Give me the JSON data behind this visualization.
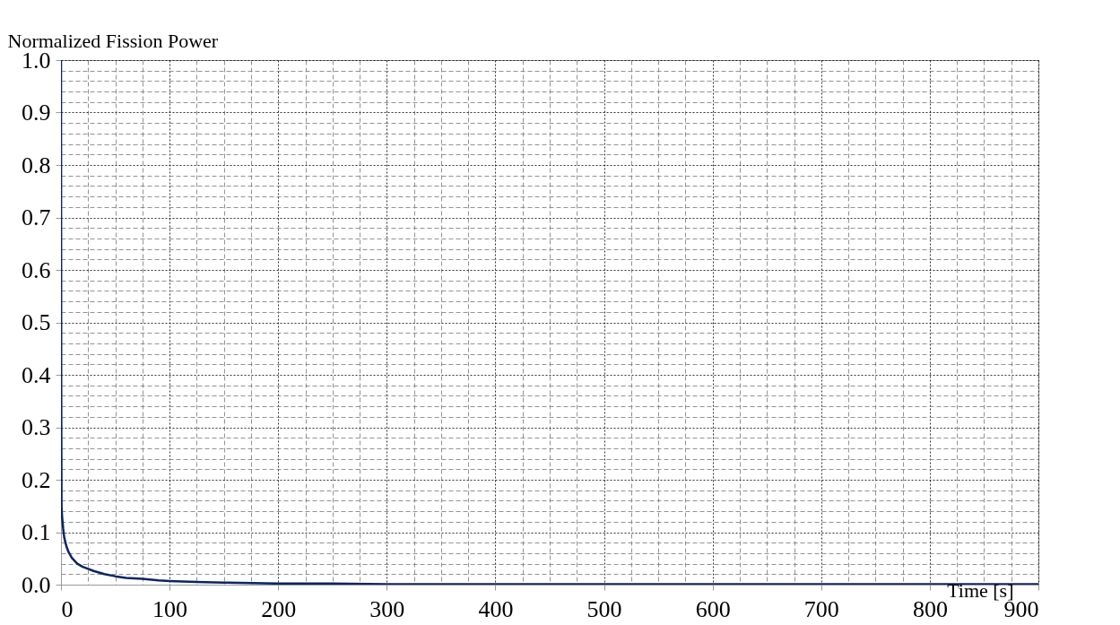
{
  "chart_data": {
    "type": "line",
    "ylabel": "Normalized Fission Power",
    "xlabel": "Time [s]",
    "x": [
      0,
      0.2,
      0.5,
      1,
      2,
      3,
      5,
      7,
      10,
      15,
      20,
      25,
      30,
      40,
      50,
      60,
      75,
      90,
      100,
      125,
      150,
      200,
      250,
      300,
      400,
      500,
      600,
      700,
      800,
      900
    ],
    "series": [
      {
        "color": "#0a2465",
        "values": [
          1.0,
          0.4,
          0.15,
          0.13,
          0.107,
          0.09,
          0.073,
          0.062,
          0.051,
          0.04,
          0.034,
          0.03,
          0.026,
          0.02,
          0.016,
          0.013,
          0.011,
          0.008,
          0.007,
          0.005,
          0.004,
          0.002,
          0.002,
          0.001,
          0.001,
          0.001,
          0.001,
          0.001,
          0.001,
          0.001
        ]
      }
    ],
    "xlim": [
      0,
      900
    ],
    "xticks": [
      0,
      100,
      200,
      300,
      400,
      500,
      600,
      700,
      800,
      900
    ],
    "ylim": [
      0,
      1
    ],
    "yticks": [
      {
        "value": 0,
        "label": "0.0"
      },
      {
        "value": 0.1,
        "label": "0.1"
      },
      {
        "value": 0.2,
        "label": "0.2"
      },
      {
        "value": 0.3,
        "label": "0.3"
      },
      {
        "value": 0.4,
        "label": "0.4"
      },
      {
        "value": 0.5,
        "label": "0.5"
      },
      {
        "value": 0.6,
        "label": "0.6"
      },
      {
        "value": 0.7,
        "label": "0.7"
      },
      {
        "value": 0.8,
        "label": "0.8"
      },
      {
        "value": 0.9,
        "label": "0.9"
      },
      {
        "value": 1,
        "label": "1.0"
      }
    ],
    "grid": true,
    "marker": "none",
    "line_style": "solid"
  }
}
